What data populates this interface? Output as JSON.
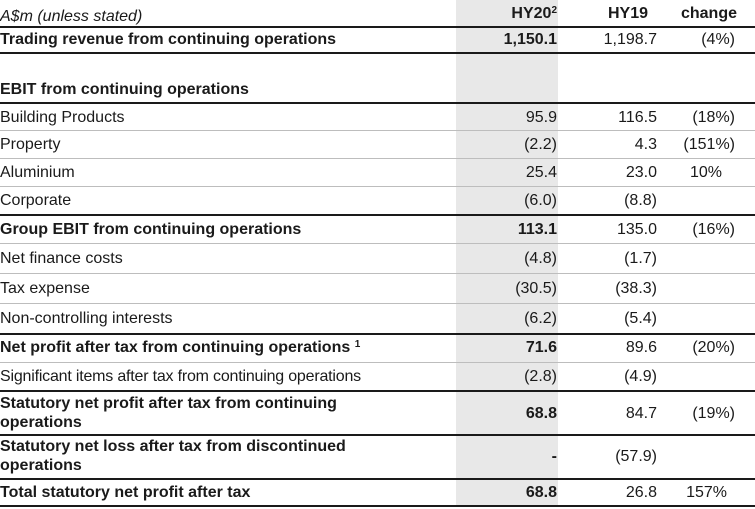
{
  "header": {
    "label": "A$m (unless stated)",
    "hy20": "HY20",
    "hy20_sup": "2",
    "hy19": "HY19",
    "change": "change"
  },
  "rows": [
    {
      "label": "Trading revenue from continuing operations",
      "hy20": "1,150.1",
      "hy19": "1,198.7",
      "change": "(4%)"
    },
    {
      "label": "EBIT from continuing operations",
      "hy20": "",
      "hy19": "",
      "change": ""
    },
    {
      "label": "Building Products",
      "hy20": "95.9",
      "hy19": "116.5",
      "change": "(18%)"
    },
    {
      "label": "Property",
      "hy20": "(2.2)",
      "hy19": "4.3",
      "change": "(151%)"
    },
    {
      "label": "Aluminium",
      "hy20": "25.4",
      "hy19": "23.0",
      "change": "10%"
    },
    {
      "label": "Corporate",
      "hy20": "(6.0)",
      "hy19": "(8.8)",
      "change": ""
    },
    {
      "label": "Group EBIT from continuing operations",
      "hy20": "113.1",
      "hy19": "135.0",
      "change": "(16%)"
    },
    {
      "label": "Net finance costs",
      "hy20": "(4.8)",
      "hy19": "(1.7)",
      "change": ""
    },
    {
      "label": "Tax expense",
      "hy20": "(30.5)",
      "hy19": "(38.3)",
      "change": ""
    },
    {
      "label": "Non-controlling interests",
      "hy20": "(6.2)",
      "hy19": "(5.4)",
      "change": ""
    },
    {
      "label": "Net profit after tax from continuing operations",
      "label_sup": "1",
      "hy20": "71.6",
      "hy19": "89.6",
      "change": "(20%)"
    },
    {
      "label": "Significant items after tax from continuing operations",
      "hy20": "(2.8)",
      "hy19": "(4.9)",
      "change": ""
    },
    {
      "label": "Statutory net profit after tax from continuing operations",
      "hy20": "68.8",
      "hy19": "84.7",
      "change": "(19%)"
    },
    {
      "label": "Statutory net loss after tax from discontinued operations",
      "hy20": "-",
      "hy19": "(57.9)",
      "change": ""
    },
    {
      "label": "Total statutory net profit after tax",
      "hy20": "68.8",
      "hy19": "26.8",
      "change": "157%"
    }
  ]
}
